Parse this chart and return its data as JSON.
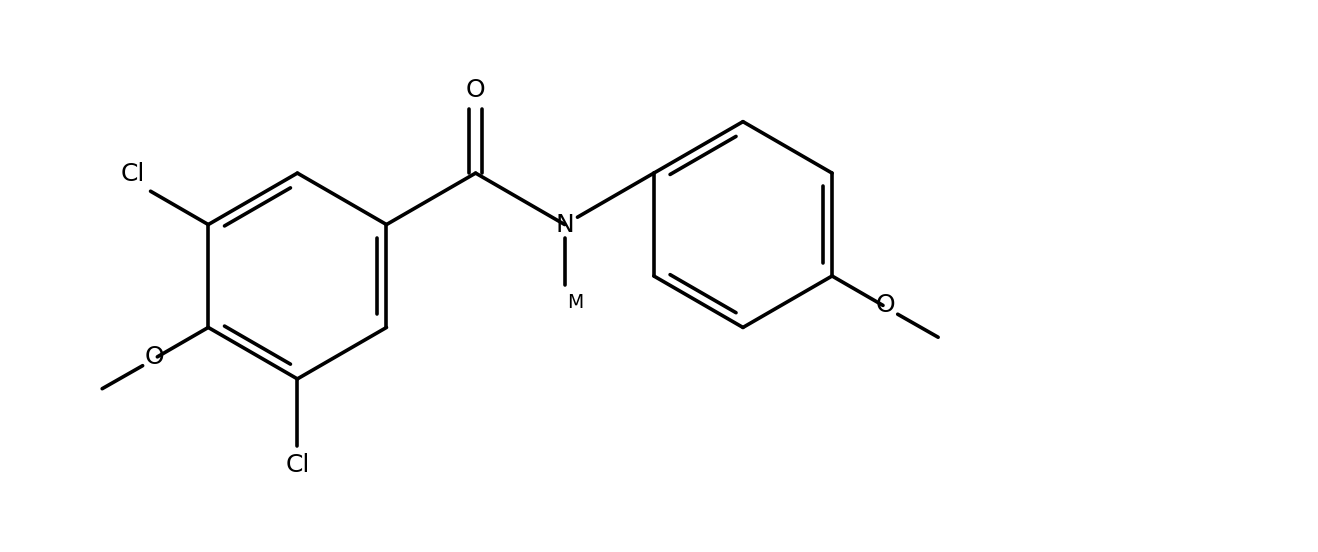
{
  "bg_color": "#ffffff",
  "line_color": "#000000",
  "lw": 2.6,
  "fig_w": 13.18,
  "fig_h": 5.52,
  "dpi": 100,
  "fs": 18,
  "r": 1.0,
  "xlim": [
    0.0,
    13.18
  ],
  "ylim": [
    0.0,
    5.52
  ]
}
